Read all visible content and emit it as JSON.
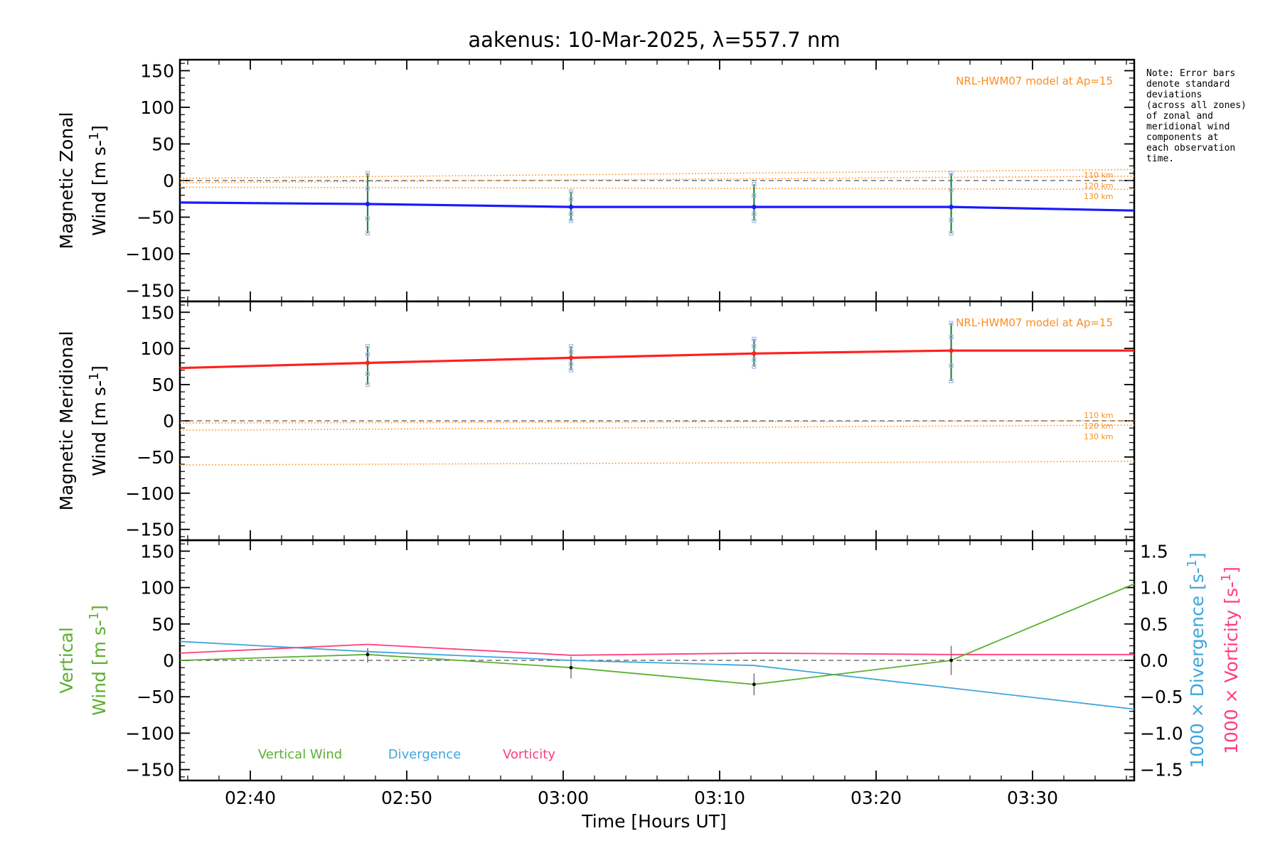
{
  "chart_data": {
    "title": "aakenus: 10-Mar-2025, λ=557.7 nm",
    "xlabel": "Time [Hours UT]",
    "xrange_minutes": [
      155.5,
      216.5
    ],
    "x_ticks": [
      {
        "min": 160,
        "label": "02:40"
      },
      {
        "min": 170,
        "label": "02:50"
      },
      {
        "min": 180,
        "label": "03:00"
      },
      {
        "min": 190,
        "label": "03:10"
      },
      {
        "min": 200,
        "label": "03:20"
      },
      {
        "min": 210,
        "label": "03:30"
      }
    ],
    "obs_times_minutes": [
      155.5,
      167.5,
      180.5,
      192.2,
      204.8,
      216.5
    ],
    "colors": {
      "zonal": "#1a1aff",
      "meridional": "#ff2020",
      "model": "#ff8c1a",
      "vertical": "#5cb030",
      "divergence": "#3fa6dc",
      "vorticity": "#ff3d7a",
      "zero": "#555555"
    },
    "panels": [
      {
        "type": "line",
        "ylabel1": "Magnetic Zonal",
        "ylabel2": "Wind [m s⁻¹]",
        "ylim": [
          -165,
          165
        ],
        "yticks": [
          150,
          100,
          50,
          0,
          -50,
          -100,
          -150
        ],
        "model_label": "NRL-HWM07 model at Ap=15",
        "model_series": [
          {
            "name": "110 km",
            "x": [
              155.5,
              216.5
            ],
            "y": [
              3,
              15
            ]
          },
          {
            "name": "120 km",
            "x": [
              155.5,
              216.5
            ],
            "y": [
              -3,
              6
            ]
          },
          {
            "name": "130 km",
            "x": [
              155.5,
              216.5
            ],
            "y": [
              -9,
              -12
            ]
          }
        ],
        "series": {
          "name": "Zonal wind",
          "x": [
            155.5,
            167.5,
            180.5,
            192.2,
            204.8,
            216.5
          ],
          "y": [
            -30,
            -32,
            -36,
            -36,
            -36,
            -41
          ]
        },
        "errorbars": [
          {
            "x": 167.5,
            "y": -32,
            "lo": -72,
            "hi": 10
          },
          {
            "x": 180.5,
            "y": -36,
            "lo": -55,
            "hi": -15
          },
          {
            "x": 192.2,
            "y": -36,
            "lo": -55,
            "hi": -5
          },
          {
            "x": 204.8,
            "y": -36,
            "lo": -72,
            "hi": 10
          }
        ]
      },
      {
        "type": "line",
        "ylabel1": "Magnetic Meridional",
        "ylabel2": "Wind [m s⁻¹]",
        "ylim": [
          -165,
          165
        ],
        "yticks": [
          150,
          100,
          50,
          0,
          -50,
          -100,
          -150
        ],
        "model_label": "NRL-HWM07 model at Ap=15",
        "model_series": [
          {
            "name": "110 km",
            "x": [
              155.5,
              216.5
            ],
            "y": [
              -3,
              0
            ]
          },
          {
            "name": "120 km",
            "x": [
              155.5,
              216.5
            ],
            "y": [
              -13,
              -6
            ]
          },
          {
            "name": "130 km",
            "x": [
              155.5,
              216.5
            ],
            "y": [
              -61,
              -56
            ]
          }
        ],
        "series": {
          "name": "Meridional wind",
          "x": [
            155.5,
            167.5,
            180.5,
            192.2,
            204.8,
            216.5
          ],
          "y": [
            73,
            80,
            87,
            93,
            97,
            97
          ]
        },
        "errorbars": [
          {
            "x": 167.5,
            "y": 80,
            "lo": 50,
            "hi": 103
          },
          {
            "x": 180.5,
            "y": 87,
            "lo": 70,
            "hi": 103
          },
          {
            "x": 192.2,
            "y": 93,
            "lo": 75,
            "hi": 113
          },
          {
            "x": 204.8,
            "y": 97,
            "lo": 55,
            "hi": 135
          }
        ]
      },
      {
        "type": "line",
        "ylabel1": "Vertical",
        "ylabel2": "Wind [m s⁻¹]",
        "ylim": [
          -165,
          165
        ],
        "yticks": [
          150,
          100,
          50,
          0,
          -50,
          -100,
          -150
        ],
        "y2lim": [
          -1.65,
          1.65
        ],
        "y2ticks": [
          1.5,
          1.0,
          0.5,
          0.0,
          -0.5,
          -1.0,
          -1.5
        ],
        "y2label_div": "1000 × Divergence [s⁻¹]",
        "y2label_vort": "1000 × Vorticity [s⁻¹]",
        "legend": [
          "Vertical Wind",
          "Divergence",
          "Vorticity"
        ],
        "vertical": {
          "x": [
            155.5,
            167.5,
            180.5,
            192.2,
            204.8,
            216.5
          ],
          "y": [
            0,
            8,
            -10,
            -33,
            0,
            105
          ]
        },
        "vertical_err": [
          {
            "x": 167.5,
            "lo": -3,
            "hi": 17
          },
          {
            "x": 180.5,
            "lo": -25,
            "hi": 5
          },
          {
            "x": 192.2,
            "lo": -48,
            "hi": -18
          },
          {
            "x": 204.8,
            "lo": -20,
            "hi": 20
          }
        ],
        "divergence": {
          "x": [
            155.5,
            167.5,
            180.5,
            192.2,
            204.8,
            216.5
          ],
          "y": [
            0.26,
            0.12,
            0.0,
            -0.07,
            -0.38,
            -0.67
          ]
        },
        "vorticity": {
          "x": [
            155.5,
            167.5,
            180.5,
            192.2,
            204.8,
            216.5
          ],
          "y": [
            0.1,
            0.22,
            0.07,
            0.1,
            0.08,
            0.08
          ]
        }
      }
    ]
  },
  "note": {
    "lines": [
      "Note: Error bars",
      "denote standard",
      "deviations",
      "(across all zones)",
      "of zonal and",
      "meridional wind",
      "components at",
      "each observation",
      "time."
    ]
  }
}
